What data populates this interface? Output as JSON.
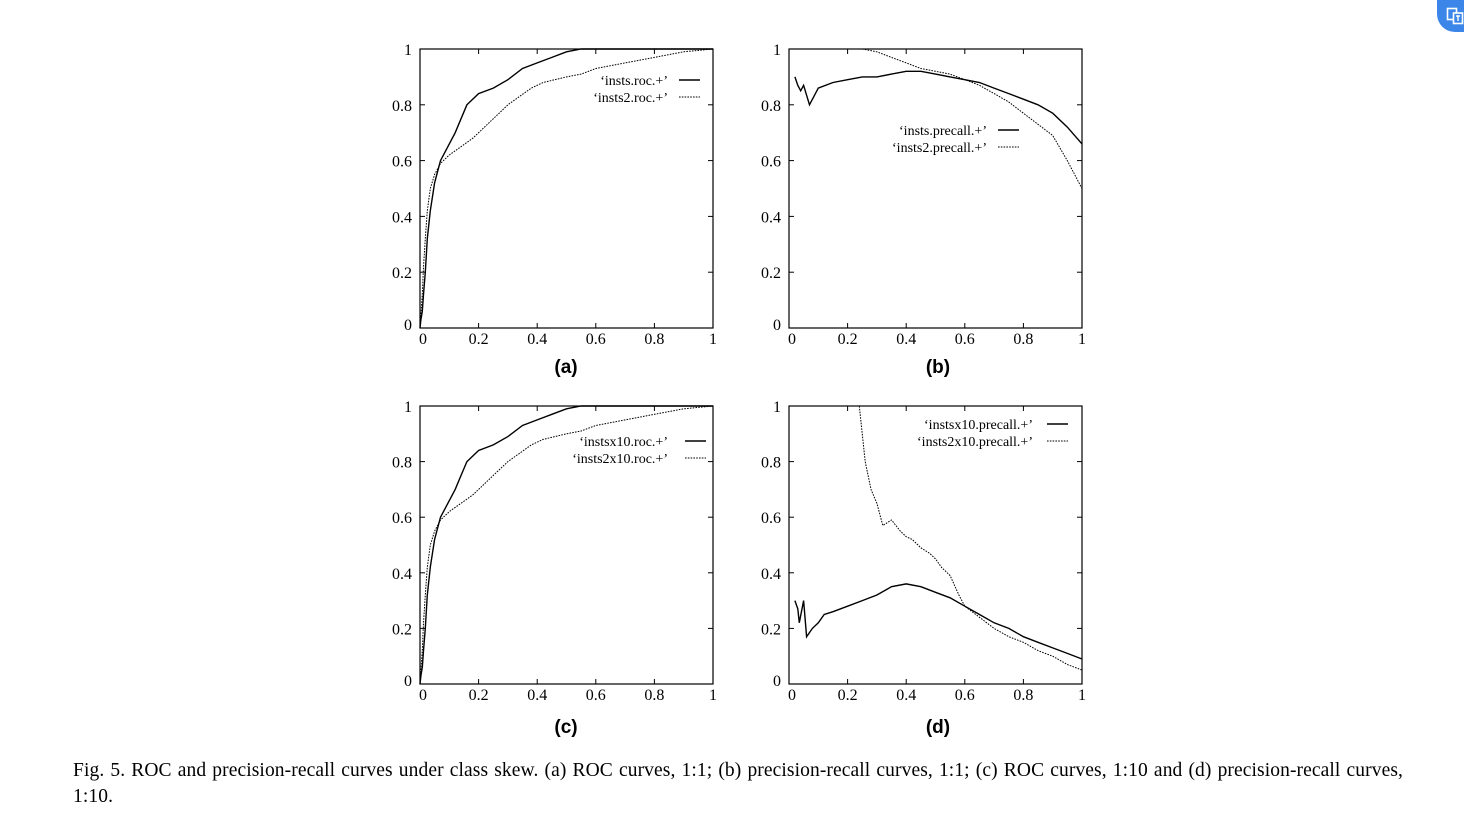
{
  "caption": "Fig. 5. ROC and precision-recall curves under class skew. (a) ROC curves, 1:1; (b) precision-recall curves, 1:1; (c) ROC curves, 1:10 and (d) precision-recall curves, 1:10.",
  "badge": {
    "icon": "translate-icon",
    "color": "#3b86e8"
  },
  "chart_data": [
    {
      "type": "line",
      "panel_label": "(a)",
      "xlim": [
        0,
        1
      ],
      "ylim": [
        0,
        1
      ],
      "xticks": [
        {
          "v": 0,
          "label": "0"
        },
        {
          "v": 0.2,
          "label": "0.2"
        },
        {
          "v": 0.4,
          "label": "0.4"
        },
        {
          "v": 0.6,
          "label": "0.6"
        },
        {
          "v": 0.8,
          "label": "0.8"
        },
        {
          "v": 1,
          "label": "1"
        }
      ],
      "yticks": [
        {
          "v": 0,
          "label": "0"
        },
        {
          "v": 0.2,
          "label": "0.2"
        },
        {
          "v": 0.4,
          "label": "0.4"
        },
        {
          "v": 0.6,
          "label": "0.6"
        },
        {
          "v": 0.8,
          "label": "0.8"
        },
        {
          "v": 1,
          "label": "1"
        }
      ],
      "legend_position": "top-right",
      "series": [
        {
          "name": "‘insts.roc.+’",
          "style": "solid",
          "x": [
            0,
            0.003,
            0.008,
            0.012,
            0.018,
            0.025,
            0.035,
            0.05,
            0.07,
            0.09,
            0.12,
            0.14,
            0.16,
            0.2,
            0.25,
            0.3,
            0.35,
            0.4,
            0.45,
            0.5,
            0.55,
            0.6,
            0.7,
            0.8,
            0.9,
            1.0
          ],
          "y": [
            0,
            0.03,
            0.06,
            0.12,
            0.2,
            0.32,
            0.42,
            0.52,
            0.6,
            0.64,
            0.7,
            0.75,
            0.8,
            0.84,
            0.86,
            0.89,
            0.93,
            0.95,
            0.97,
            0.99,
            1.0,
            1.0,
            1.0,
            1.0,
            1.0,
            1.0
          ]
        },
        {
          "name": "‘insts2.roc.+’",
          "style": "dotted",
          "x": [
            0,
            0.003,
            0.008,
            0.012,
            0.018,
            0.025,
            0.035,
            0.05,
            0.07,
            0.1,
            0.14,
            0.18,
            0.22,
            0.26,
            0.3,
            0.34,
            0.38,
            0.42,
            0.46,
            0.5,
            0.55,
            0.6,
            0.7,
            0.8,
            0.9,
            1.0
          ],
          "y": [
            0,
            0.05,
            0.12,
            0.22,
            0.32,
            0.42,
            0.5,
            0.55,
            0.59,
            0.62,
            0.65,
            0.68,
            0.72,
            0.76,
            0.8,
            0.83,
            0.86,
            0.88,
            0.89,
            0.9,
            0.91,
            0.93,
            0.95,
            0.97,
            0.99,
            1.0
          ]
        }
      ]
    },
    {
      "type": "line",
      "panel_label": "(b)",
      "xlim": [
        0,
        1
      ],
      "ylim": [
        0,
        1
      ],
      "xticks": [
        {
          "v": 0,
          "label": "0"
        },
        {
          "v": 0.2,
          "label": "0.2"
        },
        {
          "v": 0.4,
          "label": "0.4"
        },
        {
          "v": 0.6,
          "label": "0.6"
        },
        {
          "v": 0.8,
          "label": "0.8"
        },
        {
          "v": 1,
          "label": "1"
        }
      ],
      "yticks": [
        {
          "v": 0,
          "label": "0"
        },
        {
          "v": 0.2,
          "label": "0.2"
        },
        {
          "v": 0.4,
          "label": "0.4"
        },
        {
          "v": 0.6,
          "label": "0.6"
        },
        {
          "v": 0.8,
          "label": "0.8"
        },
        {
          "v": 1,
          "label": "1"
        }
      ],
      "legend_position": "middle-right",
      "series": [
        {
          "name": "‘insts.precall.+’",
          "style": "solid",
          "x": [
            0.02,
            0.03,
            0.04,
            0.05,
            0.07,
            0.1,
            0.15,
            0.2,
            0.25,
            0.3,
            0.35,
            0.4,
            0.45,
            0.5,
            0.55,
            0.6,
            0.65,
            0.7,
            0.75,
            0.8,
            0.85,
            0.9,
            0.95,
            1.0
          ],
          "y": [
            0.9,
            0.87,
            0.85,
            0.87,
            0.8,
            0.86,
            0.88,
            0.89,
            0.9,
            0.9,
            0.91,
            0.92,
            0.92,
            0.91,
            0.9,
            0.89,
            0.88,
            0.86,
            0.84,
            0.82,
            0.8,
            0.77,
            0.72,
            0.66
          ]
        },
        {
          "name": "‘insts2.precall.+’",
          "style": "dotted",
          "x": [
            0.02,
            0.05,
            0.1,
            0.15,
            0.2,
            0.25,
            0.3,
            0.35,
            0.4,
            0.45,
            0.5,
            0.55,
            0.6,
            0.65,
            0.7,
            0.75,
            0.8,
            0.85,
            0.9,
            0.95,
            1.0
          ],
          "y": [
            1.0,
            1.0,
            1.0,
            1.0,
            1.0,
            1.0,
            0.99,
            0.97,
            0.95,
            0.93,
            0.92,
            0.91,
            0.89,
            0.87,
            0.84,
            0.81,
            0.77,
            0.73,
            0.69,
            0.6,
            0.5
          ]
        }
      ]
    },
    {
      "type": "line",
      "panel_label": "(c)",
      "xlim": [
        0,
        1
      ],
      "ylim": [
        0,
        1
      ],
      "xticks": [
        {
          "v": 0,
          "label": "0"
        },
        {
          "v": 0.2,
          "label": "0.2"
        },
        {
          "v": 0.4,
          "label": "0.4"
        },
        {
          "v": 0.6,
          "label": "0.6"
        },
        {
          "v": 0.8,
          "label": "0.8"
        },
        {
          "v": 1,
          "label": "1"
        }
      ],
      "yticks": [
        {
          "v": 0,
          "label": "0"
        },
        {
          "v": 0.2,
          "label": "0.2"
        },
        {
          "v": 0.4,
          "label": "0.4"
        },
        {
          "v": 0.6,
          "label": "0.6"
        },
        {
          "v": 0.8,
          "label": "0.8"
        },
        {
          "v": 1,
          "label": "1"
        }
      ],
      "legend_position": "top-right",
      "series": [
        {
          "name": "‘instsx10.roc.+’",
          "style": "solid",
          "x": [
            0,
            0.003,
            0.008,
            0.012,
            0.018,
            0.025,
            0.035,
            0.05,
            0.07,
            0.09,
            0.12,
            0.14,
            0.16,
            0.2,
            0.25,
            0.3,
            0.35,
            0.4,
            0.45,
            0.5,
            0.55,
            0.6,
            0.7,
            0.8,
            0.9,
            1.0
          ],
          "y": [
            0,
            0.03,
            0.06,
            0.12,
            0.2,
            0.32,
            0.42,
            0.52,
            0.6,
            0.64,
            0.7,
            0.75,
            0.8,
            0.84,
            0.86,
            0.89,
            0.93,
            0.95,
            0.97,
            0.99,
            1.0,
            1.0,
            1.0,
            1.0,
            1.0,
            1.0
          ]
        },
        {
          "name": "‘insts2x10.roc.+’",
          "style": "dotted",
          "x": [
            0,
            0.003,
            0.008,
            0.012,
            0.018,
            0.025,
            0.035,
            0.05,
            0.07,
            0.1,
            0.14,
            0.18,
            0.22,
            0.26,
            0.3,
            0.34,
            0.38,
            0.42,
            0.46,
            0.5,
            0.55,
            0.6,
            0.7,
            0.8,
            0.9,
            1.0
          ],
          "y": [
            0,
            0.05,
            0.12,
            0.22,
            0.32,
            0.42,
            0.5,
            0.55,
            0.59,
            0.62,
            0.65,
            0.68,
            0.72,
            0.76,
            0.8,
            0.83,
            0.86,
            0.88,
            0.89,
            0.9,
            0.91,
            0.93,
            0.95,
            0.97,
            0.99,
            1.0
          ]
        }
      ]
    },
    {
      "type": "line",
      "panel_label": "(d)",
      "xlim": [
        0,
        1
      ],
      "ylim": [
        0,
        1
      ],
      "xticks": [
        {
          "v": 0,
          "label": "0"
        },
        {
          "v": 0.2,
          "label": "0.2"
        },
        {
          "v": 0.4,
          "label": "0.4"
        },
        {
          "v": 0.6,
          "label": "0.6"
        },
        {
          "v": 0.8,
          "label": "0.8"
        },
        {
          "v": 1,
          "label": "1"
        }
      ],
      "yticks": [
        {
          "v": 0,
          "label": "0"
        },
        {
          "v": 0.2,
          "label": "0.2"
        },
        {
          "v": 0.4,
          "label": "0.4"
        },
        {
          "v": 0.6,
          "label": "0.6"
        },
        {
          "v": 0.8,
          "label": "0.8"
        },
        {
          "v": 1,
          "label": "1"
        }
      ],
      "legend_position": "top-right",
      "series": [
        {
          "name": "‘instsx10.precall.+’",
          "style": "solid",
          "x": [
            0.02,
            0.03,
            0.035,
            0.05,
            0.06,
            0.08,
            0.1,
            0.12,
            0.15,
            0.2,
            0.25,
            0.3,
            0.35,
            0.4,
            0.45,
            0.5,
            0.55,
            0.6,
            0.65,
            0.7,
            0.75,
            0.8,
            0.85,
            0.9,
            0.95,
            1.0
          ],
          "y": [
            0.3,
            0.27,
            0.22,
            0.3,
            0.17,
            0.2,
            0.22,
            0.25,
            0.26,
            0.28,
            0.3,
            0.32,
            0.35,
            0.36,
            0.35,
            0.33,
            0.31,
            0.28,
            0.25,
            0.22,
            0.2,
            0.17,
            0.15,
            0.13,
            0.11,
            0.09
          ]
        },
        {
          "name": "‘insts2x10.precall.+’",
          "style": "dotted",
          "x": [
            0.02,
            0.1,
            0.2,
            0.24,
            0.26,
            0.28,
            0.3,
            0.32,
            0.35,
            0.38,
            0.4,
            0.42,
            0.45,
            0.48,
            0.5,
            0.52,
            0.55,
            0.58,
            0.6,
            0.65,
            0.7,
            0.75,
            0.8,
            0.85,
            0.9,
            0.95,
            1.0
          ],
          "y": [
            1.0,
            1.0,
            1.0,
            1.0,
            0.8,
            0.7,
            0.65,
            0.57,
            0.59,
            0.55,
            0.53,
            0.52,
            0.49,
            0.47,
            0.45,
            0.42,
            0.39,
            0.32,
            0.28,
            0.24,
            0.2,
            0.17,
            0.15,
            0.12,
            0.1,
            0.07,
            0.05
          ]
        }
      ]
    }
  ]
}
